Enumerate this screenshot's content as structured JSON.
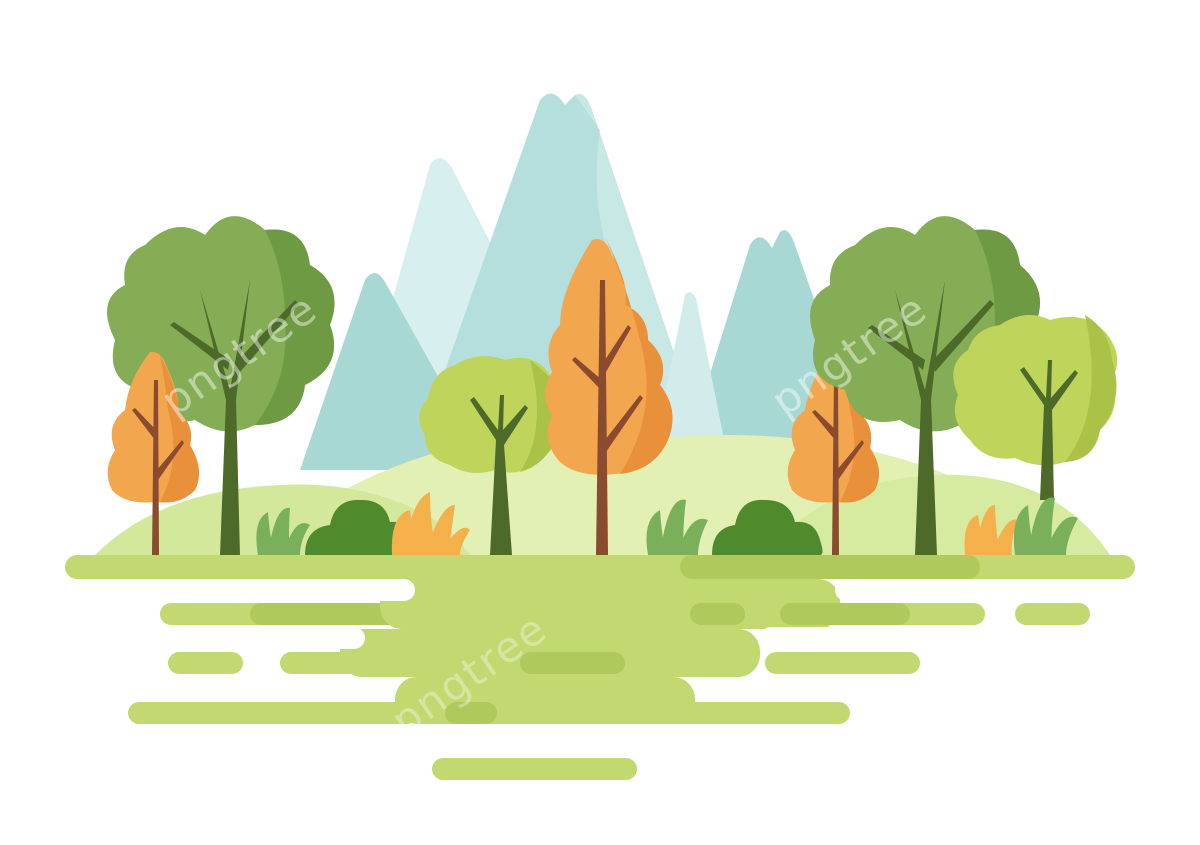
{
  "scene": {
    "subject": "flat illustration of a forest landscape with mountains, trees, bushes and a grassy field",
    "colors": {
      "background": "#ffffff",
      "mountain_light": "#d8efef",
      "mountain_mid": "#b5dfdc",
      "mountain_shade": "#9fd3cf",
      "hill_light": "#e2f0b4",
      "hill_mid": "#d3e89a",
      "field": "#c2d870",
      "field_dark": "#afc95c",
      "tree_green": "#84ad55",
      "tree_green_dark": "#6f9a44",
      "tree_lime": "#bfd45a",
      "tree_lime_dark": "#a9c247",
      "tree_orange": "#f2a64d",
      "tree_orange_dark": "#e8913a",
      "trunk_green": "#4d6a2a",
      "trunk_brown": "#8a4b2e",
      "bush_dark": "#4f8a2c",
      "bush_mid": "#7bb05a",
      "bush_orange": "#f4b04a"
    }
  },
  "watermark": {
    "text": "pngtree"
  }
}
